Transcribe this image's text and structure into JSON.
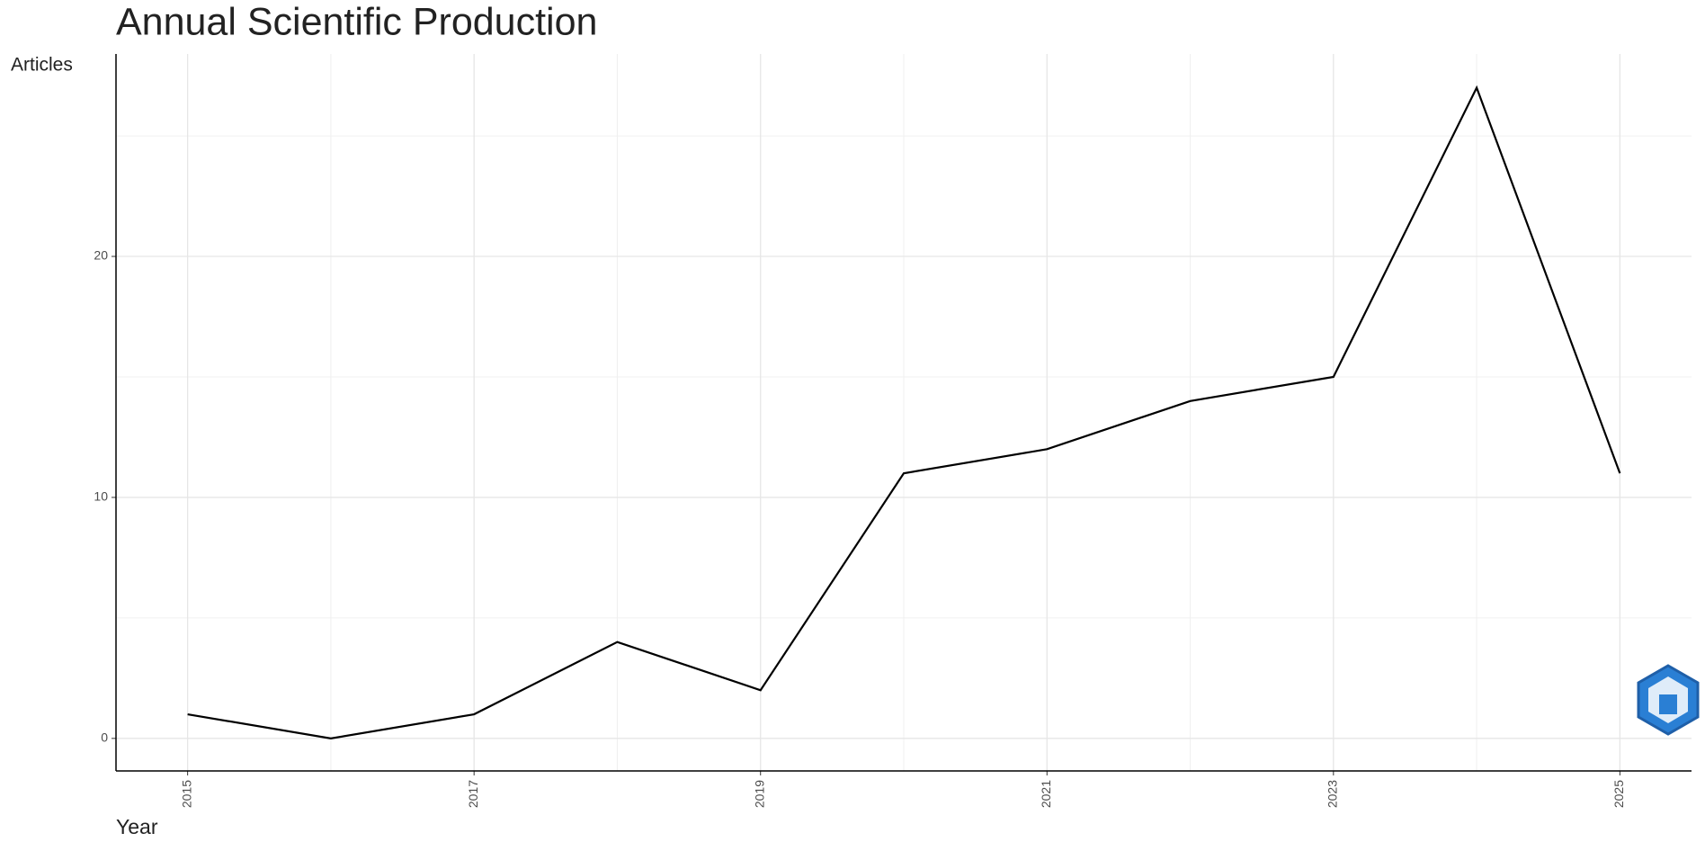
{
  "chart_data": {
    "type": "line",
    "title": "Annual Scientific Production",
    "x_label": "Year",
    "y_label": "Articles",
    "x": [
      2015,
      2016,
      2017,
      2018,
      2019,
      2020,
      2021,
      2022,
      2023,
      2024,
      2025
    ],
    "values": [
      1,
      0,
      1,
      4,
      2,
      11,
      12,
      14,
      15,
      27,
      11
    ],
    "color": "#000000",
    "xlim": [
      2014.5,
      2025.5
    ],
    "xticks": [
      2015,
      2017,
      2019,
      2021,
      2023,
      2025
    ],
    "xminorticks": [
      2016,
      2018,
      2020,
      2022,
      2024
    ],
    "ylim": [
      -1.35,
      28.4
    ],
    "yticks": [
      0,
      10,
      20
    ],
    "yminorticks": [
      5,
      15,
      25
    ],
    "grid": true
  }
}
